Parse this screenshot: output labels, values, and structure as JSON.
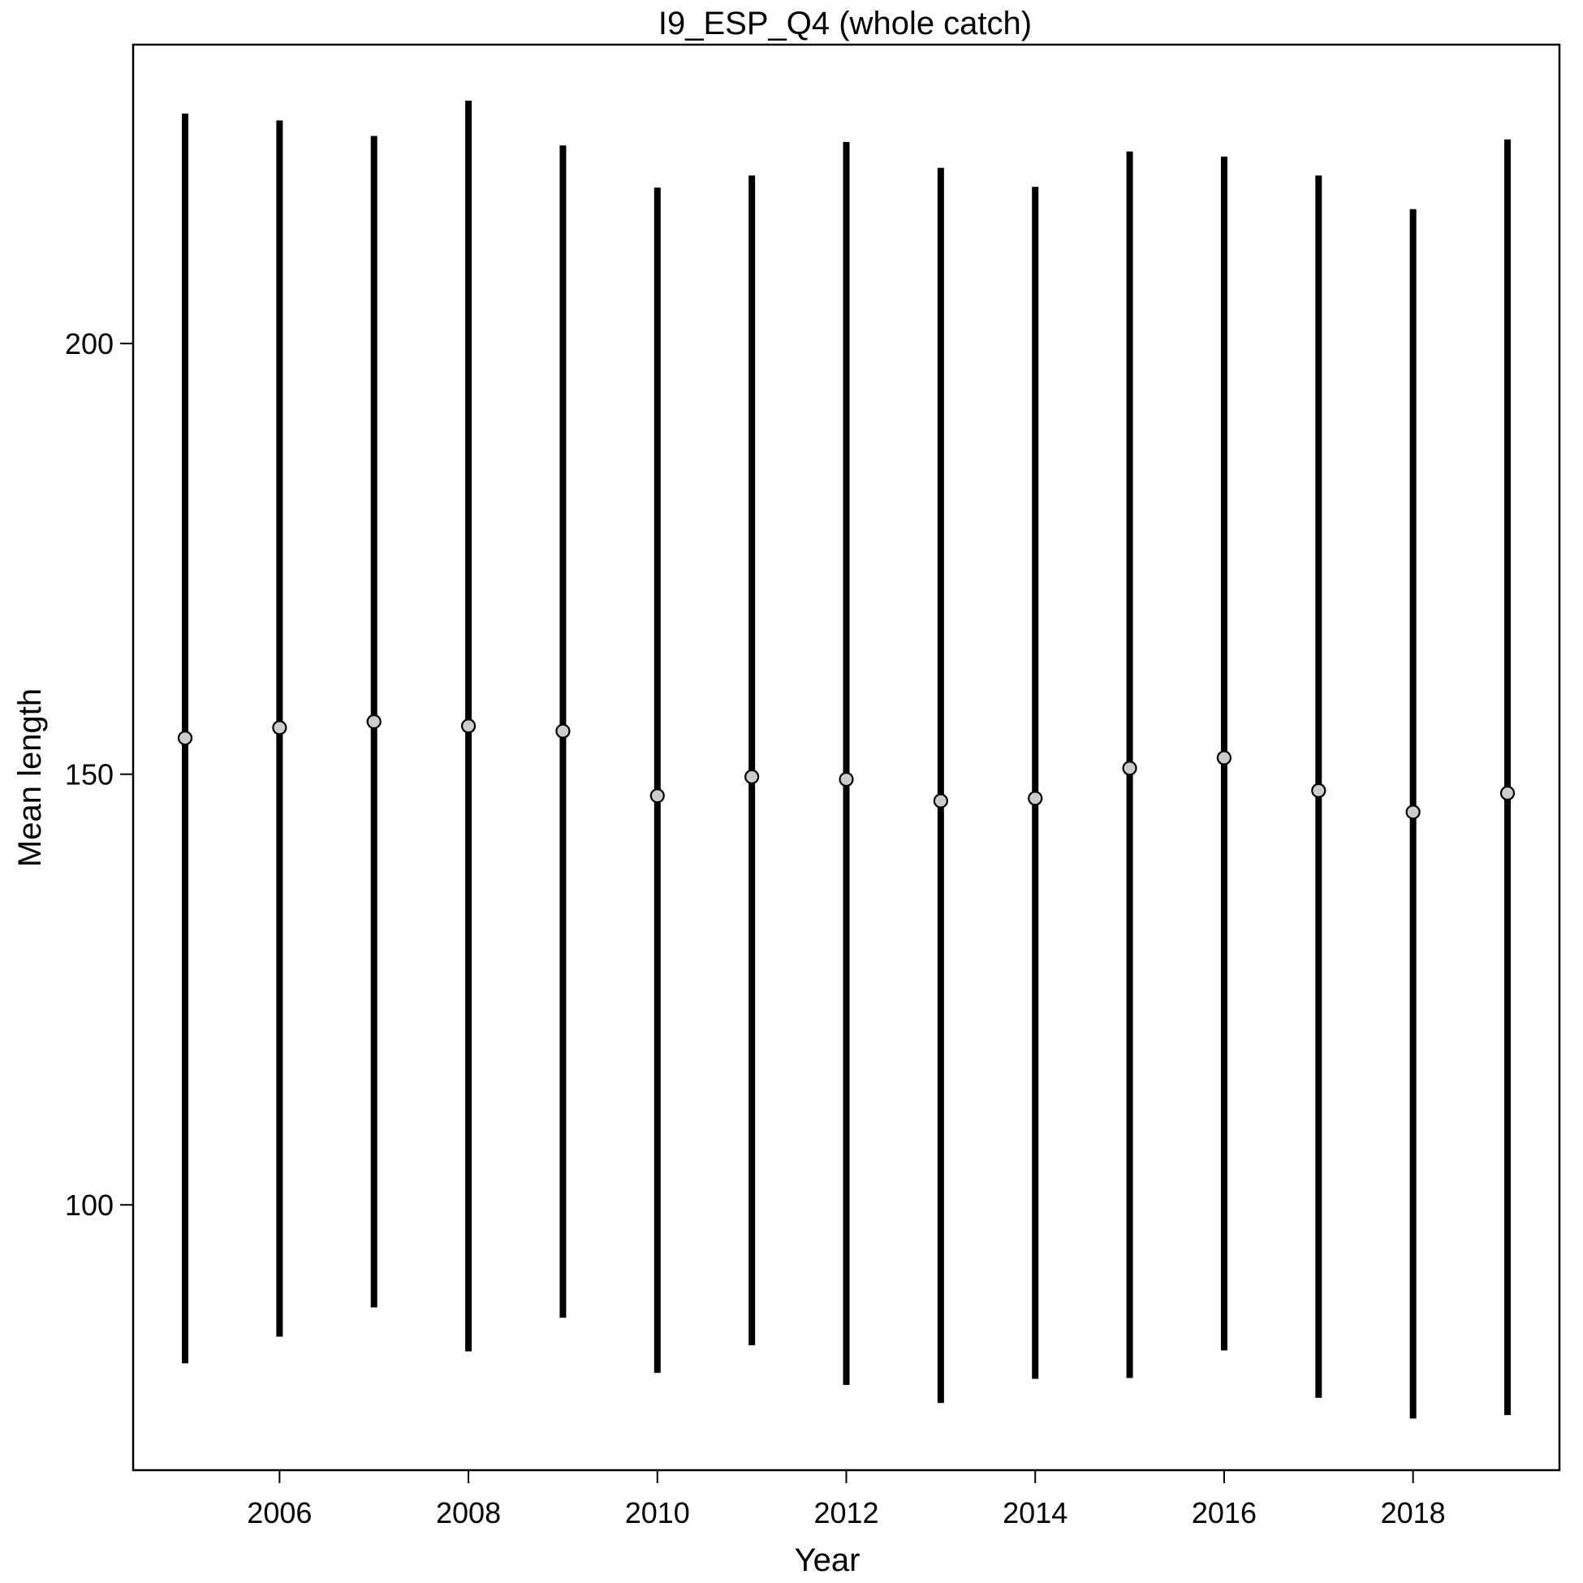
{
  "chart_data": {
    "type": "scatter",
    "title": "I9_ESP_Q4 (whole catch)",
    "xlabel": "Year",
    "ylabel": "Mean length",
    "xlim": [
      2004.45,
      2019.55
    ],
    "ylim": [
      69.2,
      234.7
    ],
    "x_ticks": [
      2006,
      2008,
      2010,
      2012,
      2014,
      2016,
      2018
    ],
    "y_ticks": [
      100,
      150,
      200
    ],
    "grid": false,
    "legend": "none",
    "x": [
      2005,
      2006,
      2007,
      2008,
      2009,
      2010,
      2011,
      2012,
      2013,
      2014,
      2015,
      2016,
      2017,
      2018,
      2019
    ],
    "series": [
      {
        "values": [
          154.2,
          155.4,
          156.1,
          155.6,
          155.0,
          147.5,
          149.7,
          149.4,
          146.9,
          147.2,
          150.7,
          151.9,
          148.1,
          145.6,
          147.8
        ],
        "lower": [
          81.6,
          84.7,
          88.1,
          83.0,
          86.9,
          80.5,
          83.7,
          79.1,
          77.0,
          79.8,
          79.9,
          83.1,
          77.6,
          75.2,
          75.6
        ],
        "upper": [
          226.7,
          225.9,
          224.1,
          228.2,
          223.0,
          218.1,
          219.5,
          223.4,
          220.4,
          218.2,
          222.3,
          221.7,
          219.5,
          215.6,
          223.7
        ]
      }
    ],
    "colors": {
      "bar": "#000000",
      "point_fill": "#cccccc",
      "point_stroke": "#000000"
    }
  }
}
